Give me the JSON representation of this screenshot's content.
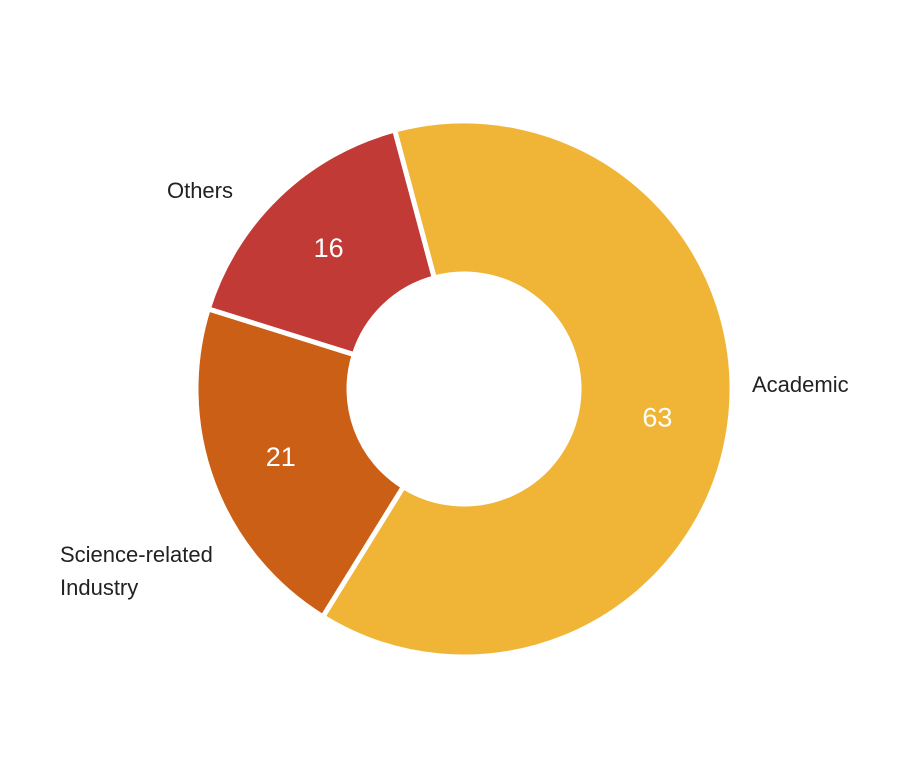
{
  "chart_data": {
    "type": "pie",
    "title": "",
    "donut": true,
    "categories": [
      "Academic",
      "Science-related Industry",
      "Others"
    ],
    "values": [
      63,
      21,
      16
    ],
    "colors": [
      "#F0B537",
      "#CB5F16",
      "#C23A35"
    ],
    "value_label_color": "#FFFFFF",
    "category_label_color": "#222222",
    "legend": "none"
  }
}
